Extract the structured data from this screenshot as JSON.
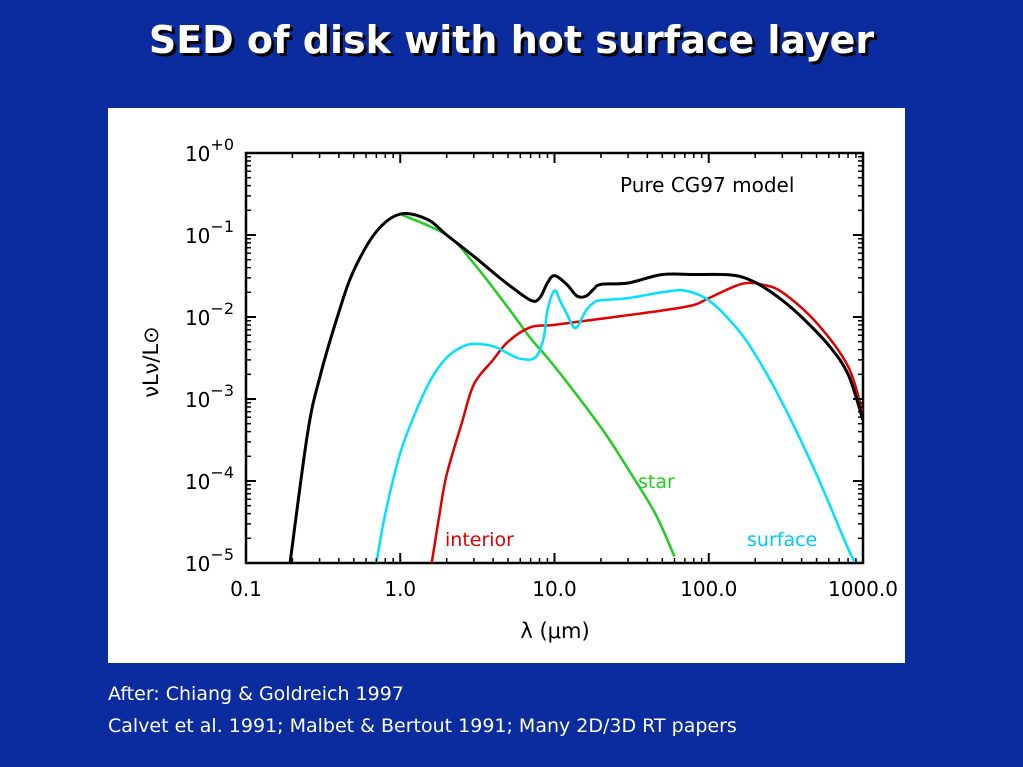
{
  "slide": {
    "title": "SED of disk with hot surface layer",
    "caption_line1": "After: Chiang & Goldreich 1997",
    "caption_line2": "Calvet et al. 1991; Malbet & Bertout 1991; Many 2D/3D RT papers"
  },
  "chart_data": {
    "type": "line",
    "annotation": "Pure CG97 model",
    "xlabel": "λ (μm)",
    "ylabel": "νLν/L⊙",
    "x_scale": "log",
    "y_scale": "log",
    "xlim": [
      0.1,
      1000.0
    ],
    "ylim": [
      1e-05,
      1.0
    ],
    "x_ticks": [
      "0.1",
      "1.0",
      "10.0",
      "100.0",
      "1000.0"
    ],
    "y_ticks": [
      {
        "base": "10",
        "exp": "−5"
      },
      {
        "base": "10",
        "exp": "−4"
      },
      {
        "base": "10",
        "exp": "−3"
      },
      {
        "base": "10",
        "exp": "−2"
      },
      {
        "base": "10",
        "exp": "−1"
      },
      {
        "base": "10",
        "exp": "+0"
      }
    ],
    "series": [
      {
        "name": "total",
        "color": "#000000",
        "x": [
          0.19,
          0.25,
          0.3,
          0.4,
          0.5,
          0.7,
          1.0,
          1.5,
          2,
          3,
          4,
          5,
          7,
          8,
          9,
          10,
          12,
          14,
          16,
          18,
          20,
          30,
          50,
          80,
          120,
          150,
          180,
          220,
          300,
          400,
          600,
          800,
          1000
        ],
        "y": [
          8e-06,
          0.00037,
          0.0018,
          0.0115,
          0.037,
          0.11,
          0.18,
          0.155,
          0.1,
          0.055,
          0.035,
          0.025,
          0.016,
          0.017,
          0.026,
          0.032,
          0.025,
          0.018,
          0.018,
          0.022,
          0.025,
          0.026,
          0.033,
          0.033,
          0.033,
          0.032,
          0.029,
          0.024,
          0.016,
          0.01,
          0.0045,
          0.002,
          0.00055
        ]
      },
      {
        "name": "star",
        "color": "#22cc22",
        "x": [
          1.0,
          2,
          3,
          5,
          7,
          10,
          20,
          30,
          45,
          60
        ],
        "y": [
          0.18,
          0.1,
          0.045,
          0.013,
          0.0055,
          0.0025,
          0.00045,
          0.00014,
          4e-05,
          1.2e-05
        ]
      },
      {
        "name": "interior",
        "color": "#e00000",
        "x": [
          1.6,
          1.8,
          2,
          2.5,
          3,
          4,
          5,
          7,
          10,
          20,
          50,
          80,
          100,
          150,
          180,
          220,
          300,
          500,
          800,
          1000
        ],
        "y": [
          1e-05,
          4e-05,
          0.00012,
          0.0005,
          0.0015,
          0.003,
          0.005,
          0.0075,
          0.008,
          0.0095,
          0.012,
          0.014,
          0.017,
          0.024,
          0.026,
          0.025,
          0.02,
          0.0085,
          0.0025,
          0.00065
        ]
      },
      {
        "name": "surface",
        "color": "#00e0ff",
        "x": [
          0.7,
          0.8,
          1.0,
          1.3,
          1.6,
          2,
          2.5,
          3,
          4,
          5,
          6,
          7.5,
          8.5,
          9,
          10,
          11,
          12,
          13,
          14,
          16,
          18,
          20,
          30,
          50,
          70,
          100,
          150,
          200,
          300,
          500,
          800,
          900
        ],
        "y": [
          1e-05,
          4e-05,
          0.00022,
          0.0008,
          0.0018,
          0.0032,
          0.0043,
          0.0047,
          0.0044,
          0.0036,
          0.0031,
          0.0032,
          0.0055,
          0.012,
          0.021,
          0.015,
          0.011,
          0.008,
          0.0075,
          0.012,
          0.015,
          0.016,
          0.017,
          0.02,
          0.021,
          0.016,
          0.0075,
          0.0035,
          0.0009,
          0.00012,
          1.5e-05,
          1e-05
        ]
      }
    ],
    "labels": [
      {
        "text": "star",
        "color": "#22cc22"
      },
      {
        "text": "interior",
        "color": "#e00000"
      },
      {
        "text": "surface",
        "color": "#00c8f0"
      }
    ]
  }
}
